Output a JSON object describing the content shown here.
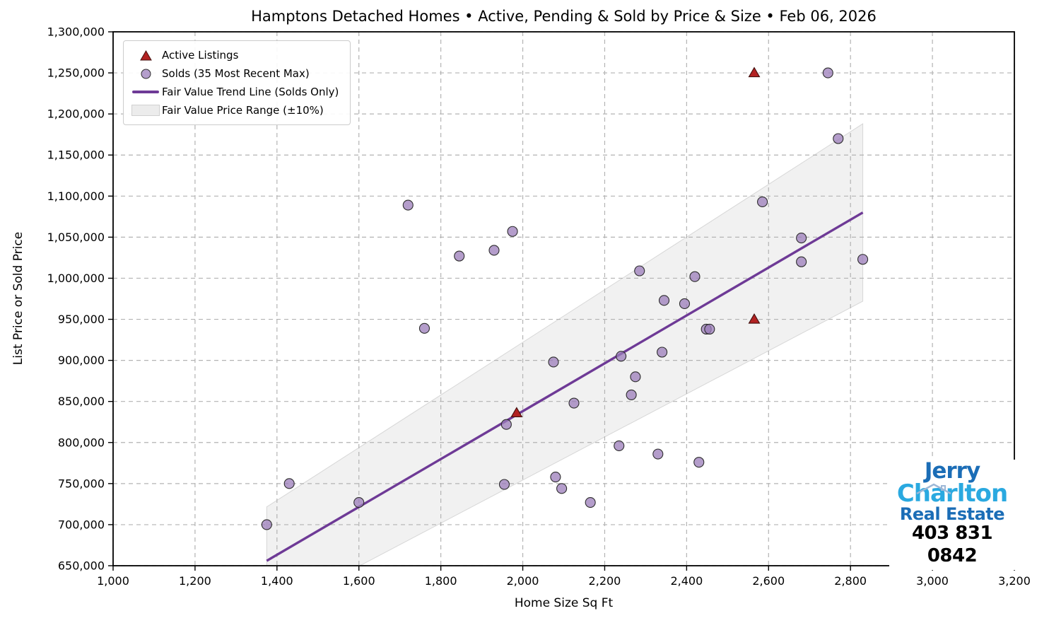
{
  "title": "Hamptons Detached Homes • Active, Pending & Sold by Price & Size • Feb 06, 2026",
  "legend": {
    "items": [
      "Active Listings",
      "Solds (35 Most Recent Max)",
      "Fair Value Trend Line (Solds Only)",
      "Fair Value Price Range (±10%)"
    ]
  },
  "chart_data": {
    "type": "scatter",
    "title": "Hamptons Detached Homes • Active, Pending & Sold by Price & Size • Feb 06, 2026",
    "xlabel": "Home Size Sq Ft",
    "ylabel": "List Price or Sold Price",
    "xlim": [
      1000,
      3200
    ],
    "ylim": [
      650000,
      1300000
    ],
    "xticks": [
      1000,
      1200,
      1400,
      1600,
      1800,
      2000,
      2200,
      2400,
      2600,
      2800,
      3000,
      3200
    ],
    "yticks": [
      650000,
      700000,
      750000,
      800000,
      850000,
      900000,
      950000,
      1000000,
      1050000,
      1100000,
      1150000,
      1200000,
      1250000,
      1300000
    ],
    "grid": true,
    "legend_position": "upper left",
    "series": [
      {
        "name": "Active Listings",
        "marker": "triangle",
        "color": "#b22222",
        "edge_color": "#43100f",
        "points": [
          [
            1985,
            836000
          ],
          [
            2565,
            950000
          ],
          [
            2565,
            1250000
          ]
        ]
      },
      {
        "name": "Solds (35 Most Recent Max)",
        "marker": "circle",
        "color": "#9b7cb9",
        "edge_color": "#2d2d2d",
        "points": [
          [
            1375,
            700000
          ],
          [
            1430,
            750000
          ],
          [
            1600,
            727000
          ],
          [
            1720,
            1089000
          ],
          [
            1760,
            939000
          ],
          [
            1845,
            1027000
          ],
          [
            1930,
            1034000
          ],
          [
            1955,
            749000
          ],
          [
            1960,
            822000
          ],
          [
            1975,
            1057000
          ],
          [
            2075,
            898000
          ],
          [
            2080,
            758000
          ],
          [
            2095,
            744000
          ],
          [
            2125,
            848000
          ],
          [
            2165,
            727000
          ],
          [
            2235,
            796000
          ],
          [
            2240,
            905000
          ],
          [
            2265,
            858000
          ],
          [
            2275,
            880000
          ],
          [
            2285,
            1009000
          ],
          [
            2330,
            786000
          ],
          [
            2340,
            910000
          ],
          [
            2345,
            973000
          ],
          [
            2395,
            969000
          ],
          [
            2420,
            1002000
          ],
          [
            2430,
            776000
          ],
          [
            2448,
            938000
          ],
          [
            2456,
            938000
          ],
          [
            2585,
            1093000
          ],
          [
            2680,
            1049000
          ],
          [
            2680,
            1020000
          ],
          [
            2745,
            1250000
          ],
          [
            2770,
            1170000
          ],
          [
            2830,
            1023000
          ]
        ]
      }
    ],
    "trend_line": {
      "name": "Fair Value Trend Line (Solds Only)",
      "color": "#6e3a96",
      "x": [
        1375,
        2830
      ],
      "y": [
        656000,
        1080000
      ]
    },
    "band": {
      "name": "Fair Value Price Range (±10%)",
      "percent": 10,
      "color": "#e6e6e6",
      "x": [
        1375,
        2830
      ],
      "y_upper": [
        721600,
        1188000
      ],
      "y_lower": [
        590400,
        972000
      ]
    },
    "grid_color": "#b3b3b3",
    "spine_color": "#000000"
  },
  "branding": {
    "line1": "Jerry",
    "line2": "Charlton",
    "line3": "Real Estate",
    "phone": "403 831 0842",
    "color_dark": "#1b6db6",
    "color_light": "#2aa9e0"
  }
}
